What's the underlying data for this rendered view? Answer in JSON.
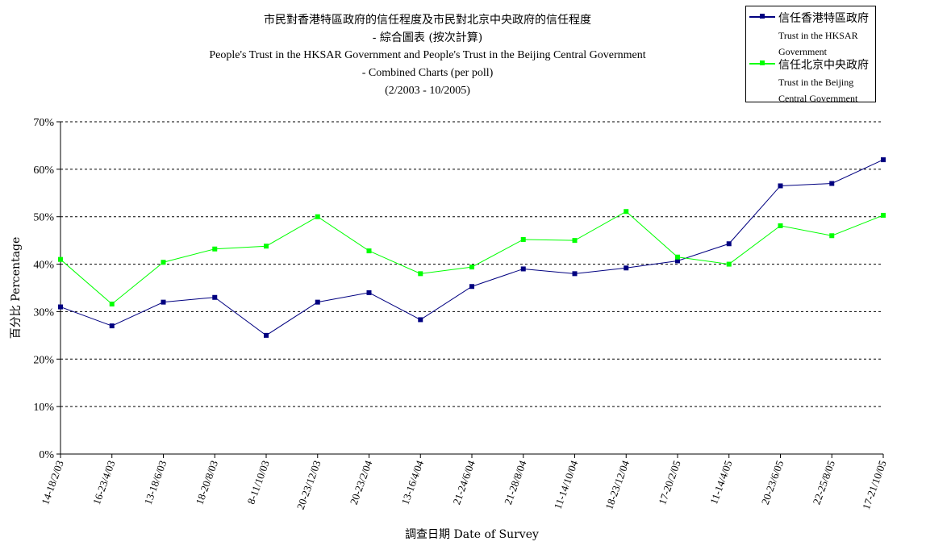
{
  "title": {
    "zh_line1": "市民對香港特區政府的信任程度及市民對北京中央政府的信任程度",
    "zh_line2": "- 綜合圖表 (按次計算)",
    "en_line1": "People's Trust in the HKSAR Government and People's Trust in the Beijing Central Government",
    "en_line2": "- Combined Charts (per poll)",
    "period": "(2/2003 - 10/2005)"
  },
  "chart_data": {
    "type": "line",
    "title": "市民對香港特區政府的信任程度及市民對北京中央政府的信任程度 - 綜合圖表 (按次計算) People's Trust in the HKSAR Government and People's Trust in the Beijing Central Government - Combined Charts (per poll) (2/2003 - 10/2005)",
    "xlabel": "調查日期 Date of Survey",
    "ylabel": "百分比 Percentage",
    "ylim": [
      0,
      70
    ],
    "yticks": [
      "0%",
      "10%",
      "20%",
      "30%",
      "40%",
      "50%",
      "60%",
      "70%"
    ],
    "grid": "horizontal dashed",
    "legend_position": "top-right",
    "categories": [
      "14-18/2/03",
      "16-23/4/03",
      "13-18/6/03",
      "18-20/8/03",
      "8-11/10/03",
      "20-23/12/03",
      "20-23/2/04",
      "13-16/4/04",
      "21-24/6/04",
      "21-28/8/04",
      "11-14/10/04",
      "18-23/12/04",
      "17-20/2/05",
      "11-14/4/05",
      "20-23/6/05",
      "22-25/8/05",
      "17-21/10/05"
    ],
    "series": [
      {
        "name_zh": "信任香港特區政府",
        "name_en": "Trust in the HKSAR Government",
        "color": "#000080",
        "values": [
          31,
          27,
          32,
          33,
          25,
          32,
          34,
          28.3,
          35.3,
          39,
          38,
          39.2,
          40.7,
          44.3,
          56.5,
          57,
          62
        ]
      },
      {
        "name_zh": "信任北京中央政府",
        "name_en": "Trust in the Beijing Central Government",
        "color": "#00ff00",
        "values": [
          41,
          31.6,
          40.4,
          43.2,
          43.8,
          50,
          42.8,
          38,
          39.4,
          45.2,
          45,
          51.1,
          41.5,
          40,
          48.1,
          46,
          50.3
        ]
      }
    ]
  }
}
